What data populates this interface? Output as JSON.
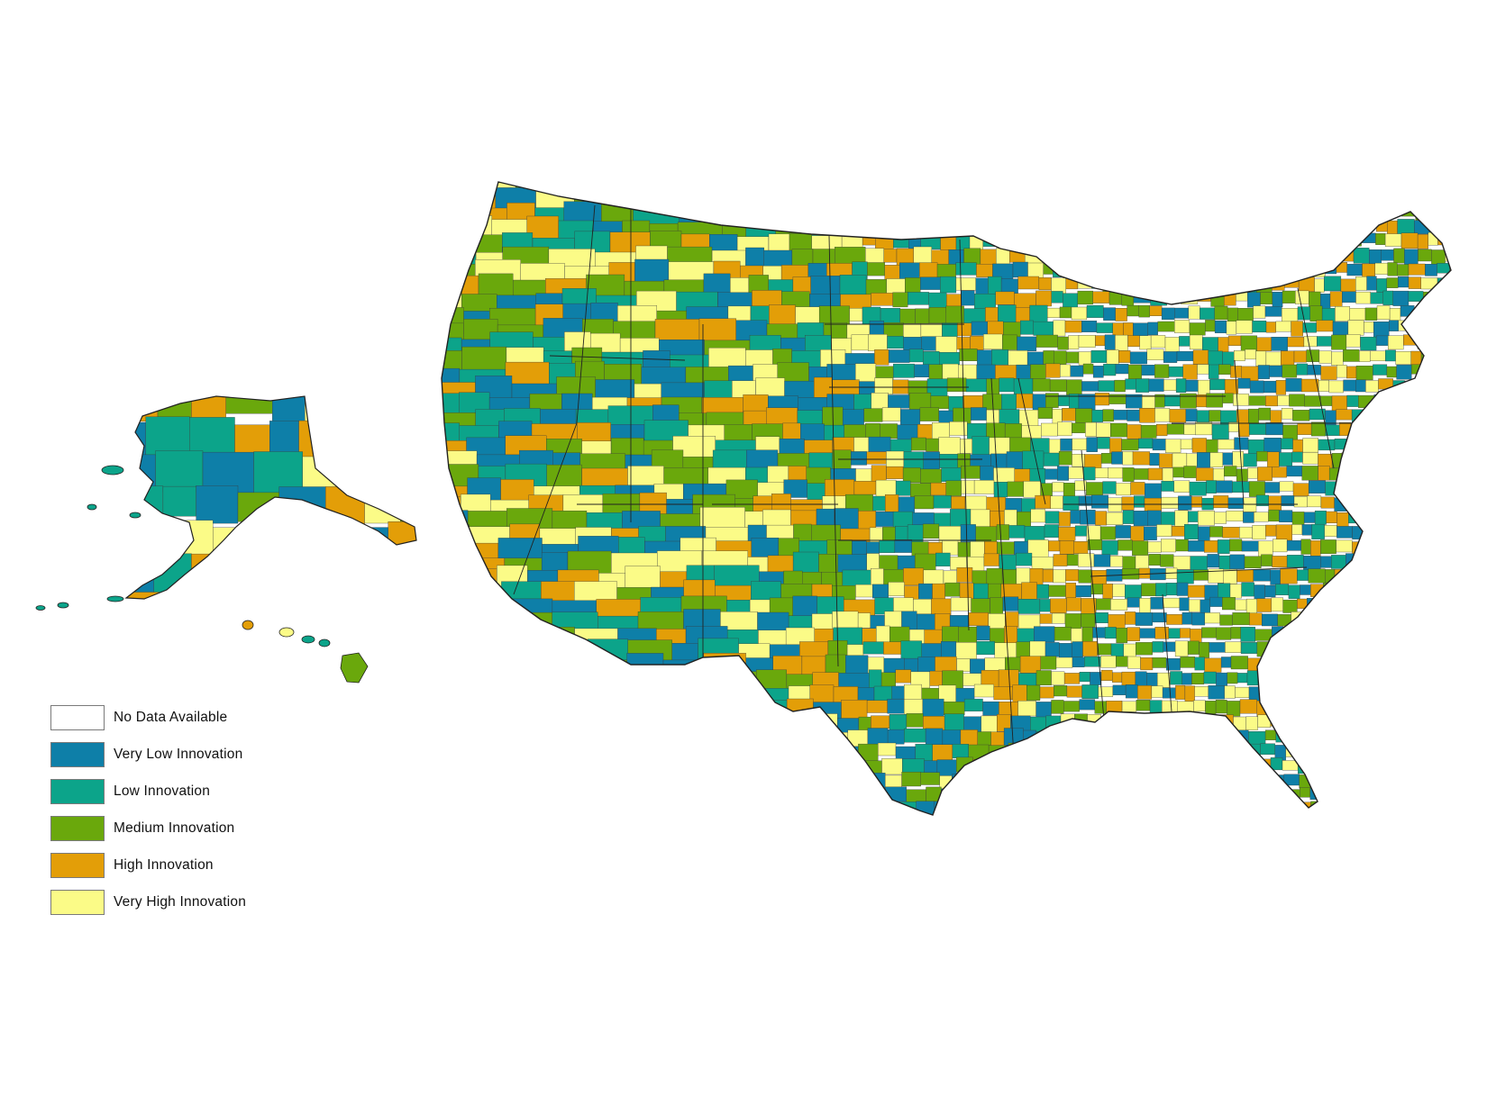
{
  "legend": {
    "items": [
      {
        "label": "No Data Available",
        "color": "#ffffff"
      },
      {
        "label": "Very Low Innovation",
        "color": "#0e7fa8"
      },
      {
        "label": "Low Innovation",
        "color": "#0ca48a"
      },
      {
        "label": "Medium Innovation",
        "color": "#6aa80c"
      },
      {
        "label": "High Innovation",
        "color": "#e39e08"
      },
      {
        "label": "Very High Innovation",
        "color": "#fbfb87"
      }
    ]
  },
  "map": {
    "regions": [
      "Contiguous United States",
      "Alaska",
      "Hawaii"
    ],
    "boundary_color": "#333333"
  }
}
